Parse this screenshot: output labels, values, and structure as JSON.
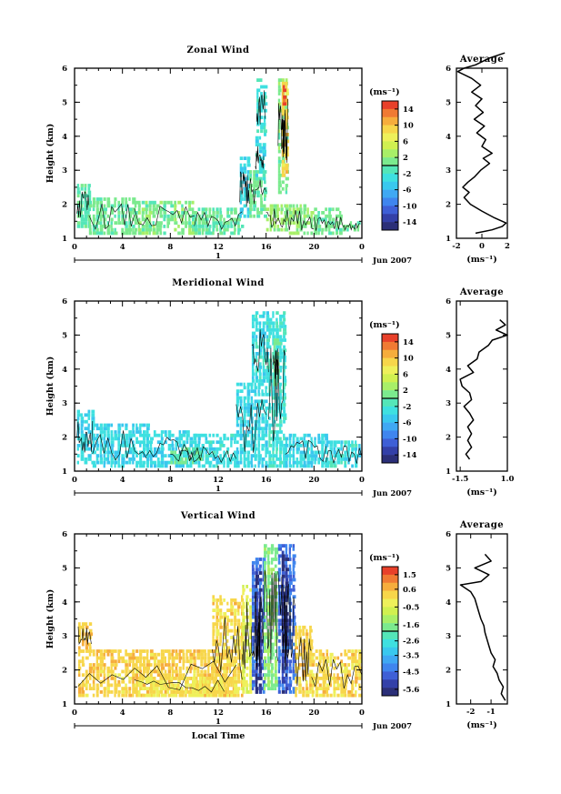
{
  "chart_data": [
    {
      "type": "heatmap",
      "title": "Zonal Wind",
      "ylabel": "Height (km)",
      "xlabel": "",
      "xlim": [
        0,
        24
      ],
      "ylim": [
        1,
        6
      ],
      "x_ticks": [
        "0",
        "4",
        "8",
        "12",
        "16",
        "20",
        "0"
      ],
      "y_ticks": [
        "1",
        "2",
        "3",
        "4",
        "5",
        "6"
      ],
      "day_label": "1",
      "date_label": "Jun 2007",
      "colorbar": {
        "unit": "(ms⁻¹)",
        "range": [
          -16,
          16
        ],
        "ticks": [
          "14",
          "10",
          "6",
          "2",
          "-2",
          "-6",
          "-10",
          "-14"
        ],
        "ticks_values": [
          14,
          10,
          6,
          2,
          -2,
          -6,
          -10,
          -14
        ]
      },
      "regions": [
        {
          "x": [
            0.2,
            1.2
          ],
          "y": [
            1.3,
            2.6
          ],
          "value": -0.5
        },
        {
          "x": [
            1.2,
            5.0
          ],
          "y": [
            1.1,
            2.2
          ],
          "value": 0.5
        },
        {
          "x": [
            5.0,
            10.0
          ],
          "y": [
            1.1,
            2.1
          ],
          "value": 1.0
        },
        {
          "x": [
            10.0,
            14.0
          ],
          "y": [
            1.1,
            1.9
          ],
          "value": 0.0
        },
        {
          "x": [
            13.8,
            14.6
          ],
          "y": [
            1.6,
            3.4
          ],
          "value": -3.5
        },
        {
          "x": [
            14.6,
            16.0
          ],
          "y": [
            1.6,
            3.0
          ],
          "value": 0.5
        },
        {
          "x": [
            15.1,
            15.8
          ],
          "y": [
            2.7,
            4.0
          ],
          "value": -3.0
        },
        {
          "x": [
            16.0,
            17.6
          ],
          "y": [
            1.2,
            2.0
          ],
          "value": 2.5
        },
        {
          "x": [
            17.6,
            20.0
          ],
          "y": [
            1.1,
            2.0
          ],
          "value": 1.5
        },
        {
          "x": [
            20.0,
            22.4
          ],
          "y": [
            1.1,
            1.9
          ],
          "value": 0.5
        },
        {
          "x": [
            22.4,
            23.8
          ],
          "y": [
            1.2,
            1.5
          ],
          "value": 0.5
        },
        {
          "x": [
            15.2,
            15.9
          ],
          "y": [
            4.0,
            5.6
          ],
          "value": -2.5
        },
        {
          "x": [
            17.0,
            17.8
          ],
          "y": [
            2.3,
            5.6
          ],
          "value": 1.0
        },
        {
          "x": [
            17.3,
            17.7
          ],
          "y": [
            2.8,
            5.5
          ],
          "value": 9.0
        },
        {
          "x": [
            17.4,
            17.6
          ],
          "y": [
            4.8,
            5.4
          ],
          "value": 15.0
        }
      ],
      "inset": {
        "title": "Average",
        "xlabel": "(ms⁻¹)",
        "xlim": [
          -2,
          2
        ],
        "ylim": [
          1,
          6
        ],
        "x_ticks": [
          "-2",
          "0",
          "2"
        ],
        "y_ticks": [
          "1",
          "2",
          "3",
          "4",
          "5",
          "6"
        ],
        "profile": {
          "height": [
            1.15,
            1.25,
            1.35,
            1.45,
            1.6,
            1.8,
            2.0,
            2.2,
            2.35,
            2.5,
            2.65,
            2.8,
            3.0,
            3.2,
            3.35,
            3.5,
            3.7,
            3.9,
            4.1,
            4.3,
            4.5,
            4.7,
            4.9,
            5.1,
            5.3,
            5.5,
            5.7,
            5.9,
            6.0,
            6.1,
            6.3,
            6.45
          ],
          "value": [
            -0.5,
            0.8,
            1.6,
            1.9,
            1.0,
            0.0,
            -0.9,
            -1.4,
            -1.0,
            -1.5,
            -1.1,
            -0.6,
            -0.1,
            0.6,
            0.1,
            0.8,
            0.0,
            0.3,
            -0.4,
            0.2,
            -0.6,
            0.1,
            -0.5,
            0.0,
            -0.8,
            -0.1,
            -0.8,
            -1.9,
            -1.4,
            -0.5,
            0.6,
            1.8
          ]
        }
      }
    },
    {
      "type": "heatmap",
      "title": "Meridional Wind",
      "ylabel": "Height (km)",
      "xlabel": "",
      "xlim": [
        0,
        24
      ],
      "ylim": [
        1,
        6
      ],
      "x_ticks": [
        "0",
        "4",
        "8",
        "12",
        "16",
        "20",
        "0"
      ],
      "y_ticks": [
        "1",
        "2",
        "3",
        "4",
        "5",
        "6"
      ],
      "day_label": "1",
      "date_label": "Jun 2007",
      "colorbar": {
        "unit": "(ms⁻¹)",
        "range": [
          -16,
          16
        ],
        "ticks": [
          "14",
          "10",
          "6",
          "2",
          "-2",
          "-6",
          "-10",
          "-14"
        ],
        "ticks_values": [
          14,
          10,
          6,
          2,
          -2,
          -6,
          -10,
          -14
        ]
      },
      "regions": [
        {
          "x": [
            0.2,
            1.5
          ],
          "y": [
            1.2,
            2.8
          ],
          "value": -3.5
        },
        {
          "x": [
            1.5,
            6.0
          ],
          "y": [
            1.1,
            2.4
          ],
          "value": -3.5
        },
        {
          "x": [
            6.0,
            10.0
          ],
          "y": [
            1.1,
            2.2
          ],
          "value": -3.5
        },
        {
          "x": [
            10.0,
            13.5
          ],
          "y": [
            1.1,
            2.1
          ],
          "value": -3.0
        },
        {
          "x": [
            13.5,
            16.0
          ],
          "y": [
            1.1,
            3.6
          ],
          "value": -3.5
        },
        {
          "x": [
            14.8,
            16.2
          ],
          "y": [
            3.6,
            5.6
          ],
          "value": -3.0
        },
        {
          "x": [
            16.2,
            17.6
          ],
          "y": [
            1.1,
            5.6
          ],
          "value": -2.5
        },
        {
          "x": [
            16.6,
            17.0
          ],
          "y": [
            3.5,
            4.8
          ],
          "value": 0.5
        },
        {
          "x": [
            8.0,
            10.5
          ],
          "y": [
            1.2,
            1.7
          ],
          "value": 0.0
        },
        {
          "x": [
            17.6,
            21.0
          ],
          "y": [
            1.1,
            2.1
          ],
          "value": -3.5
        },
        {
          "x": [
            21.0,
            24.0
          ],
          "y": [
            1.1,
            1.9
          ],
          "value": -3.0
        }
      ],
      "inset": {
        "title": "Average",
        "xlabel": "(ms⁻¹)",
        "xlim": [
          -1.7,
          1.0
        ],
        "ylim": [
          1,
          6
        ],
        "x_ticks": [
          "-1.5",
          "1.0"
        ],
        "x_ticks_values": [
          -1.5,
          1.0
        ],
        "y_ticks": [
          "1",
          "2",
          "3",
          "4",
          "5",
          "6"
        ],
        "profile": {
          "height": [
            1.35,
            1.5,
            1.7,
            1.9,
            2.1,
            2.3,
            2.5,
            2.7,
            2.9,
            3.1,
            3.3,
            3.5,
            3.7,
            3.9,
            4.1,
            4.3,
            4.5,
            4.7,
            4.85,
            5.0,
            5.15,
            5.3,
            5.45
          ],
          "value": [
            -1.0,
            -1.2,
            -0.9,
            -1.1,
            -0.9,
            -1.1,
            -0.8,
            -1.0,
            -1.3,
            -0.9,
            -1.0,
            -1.4,
            -1.5,
            -0.8,
            -1.1,
            -0.6,
            -0.5,
            0.0,
            0.2,
            1.0,
            0.4,
            0.9,
            0.6
          ]
        }
      }
    },
    {
      "type": "heatmap",
      "title": "Vertical Wind",
      "ylabel": "Height (km)",
      "xlabel": "Local Time",
      "xlim": [
        0,
        24
      ],
      "ylim": [
        1,
        6
      ],
      "x_ticks": [
        "0",
        "4",
        "8",
        "12",
        "16",
        "20",
        "0"
      ],
      "y_ticks": [
        "1",
        "2",
        "3",
        "4",
        "5",
        "6"
      ],
      "day_label": "1",
      "date_label": "Jun 2007",
      "colorbar": {
        "unit": "(ms⁻¹)",
        "range": [
          -6.0,
          2.0
        ],
        "ticks": [
          "1.5",
          "0.6",
          "-0.5",
          "-1.6",
          "-2.6",
          "-3.5",
          "-4.5",
          "-5.6"
        ],
        "ticks_values": [
          1.5,
          0.6,
          -0.5,
          -1.6,
          -2.6,
          -3.5,
          -4.5,
          -5.6
        ]
      },
      "regions": [
        {
          "x": [
            0.3,
            13.5
          ],
          "y": [
            1.2,
            2.6
          ],
          "value": 0.3
        },
        {
          "x": [
            0.3,
            1.4
          ],
          "y": [
            2.6,
            3.4
          ],
          "value": 0.5
        },
        {
          "x": [
            5.0,
            12.5
          ],
          "y": [
            1.2,
            1.8
          ],
          "value": 0.0
        },
        {
          "x": [
            11.5,
            14.0
          ],
          "y": [
            1.2,
            4.2
          ],
          "value": 0.2
        },
        {
          "x": [
            14.0,
            14.8
          ],
          "y": [
            1.3,
            4.5
          ],
          "value": -0.5
        },
        {
          "x": [
            14.8,
            15.8
          ],
          "y": [
            1.3,
            5.2
          ],
          "value": -4.5
        },
        {
          "x": [
            15.1,
            15.5
          ],
          "y": [
            1.3,
            4.8
          ],
          "value": -5.6
        },
        {
          "x": [
            15.8,
            17.0
          ],
          "y": [
            1.4,
            5.6
          ],
          "value": -1.6
        },
        {
          "x": [
            17.0,
            18.4
          ],
          "y": [
            1.3,
            5.6
          ],
          "value": -4.5
        },
        {
          "x": [
            17.3,
            17.9
          ],
          "y": [
            1.3,
            5.4
          ],
          "value": -5.6
        },
        {
          "x": [
            18.4,
            19.8
          ],
          "y": [
            1.2,
            3.3
          ],
          "value": 0.3
        },
        {
          "x": [
            19.8,
            24.0
          ],
          "y": [
            1.2,
            2.6
          ],
          "value": 0.2
        }
      ],
      "inset": {
        "title": "Average",
        "xlabel": "(ms⁻¹)",
        "xlim": [
          -2.7,
          -0.2
        ],
        "ylim": [
          1,
          6
        ],
        "x_ticks": [
          "-2",
          "-1"
        ],
        "x_ticks_values": [
          -2,
          -1
        ],
        "y_ticks": [
          "1",
          "2",
          "3",
          "4",
          "5",
          "6"
        ],
        "profile": {
          "height": [
            1.1,
            1.3,
            1.5,
            1.7,
            1.9,
            2.1,
            2.3,
            2.5,
            2.7,
            2.9,
            3.1,
            3.3,
            3.5,
            3.7,
            3.9,
            4.1,
            4.3,
            4.5,
            4.6,
            4.8,
            5.0,
            5.2,
            5.4
          ],
          "value": [
            -0.3,
            -0.5,
            -0.4,
            -0.6,
            -0.7,
            -0.9,
            -0.8,
            -1.0,
            -1.1,
            -1.2,
            -1.3,
            -1.35,
            -1.5,
            -1.6,
            -1.7,
            -1.8,
            -2.0,
            -2.5,
            -1.5,
            -1.1,
            -1.8,
            -1.0,
            -1.3
          ]
        }
      }
    }
  ]
}
